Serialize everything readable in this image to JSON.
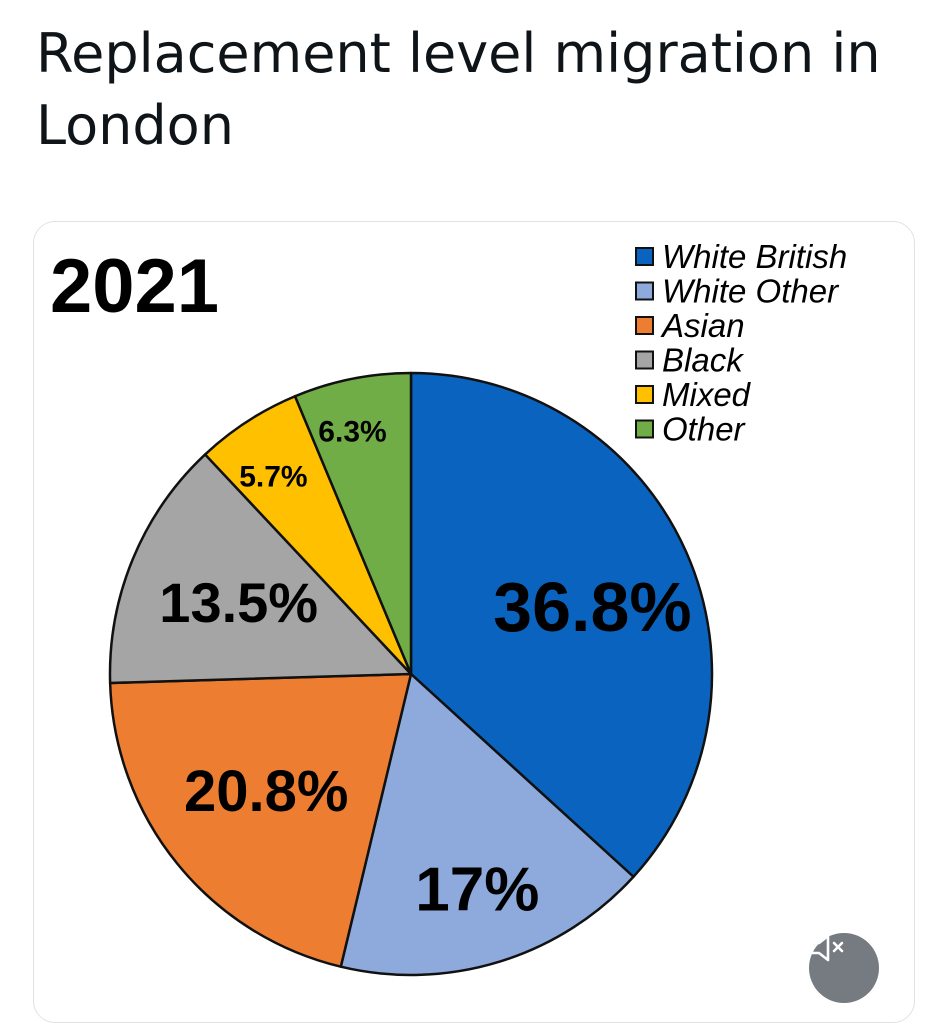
{
  "post": {
    "text": "Replacement level migration in London"
  },
  "media": {
    "mute_icon": "speaker-muted-icon"
  },
  "chart_data": {
    "type": "pie",
    "title": "2021",
    "slices": [
      {
        "name": "White British",
        "value": 36.8,
        "label": "36.8%",
        "color": "#0a64bf"
      },
      {
        "name": "White Other",
        "value": 17,
        "label": "17%",
        "color": "#8ea9dc"
      },
      {
        "name": "Asian",
        "value": 20.8,
        "label": "20.8%",
        "color": "#ed7d31"
      },
      {
        "name": "Black",
        "value": 13.5,
        "label": "13.5%",
        "color": "#a5a5a5"
      },
      {
        "name": "Mixed",
        "value": 5.7,
        "label": "5.7%",
        "color": "#ffc000"
      },
      {
        "name": "Other",
        "value": 6.3,
        "label": "6.3%",
        "color": "#70ad47"
      }
    ],
    "start_angle": "12 o'clock",
    "direction": "clockwise",
    "legend_position": "top-right"
  }
}
